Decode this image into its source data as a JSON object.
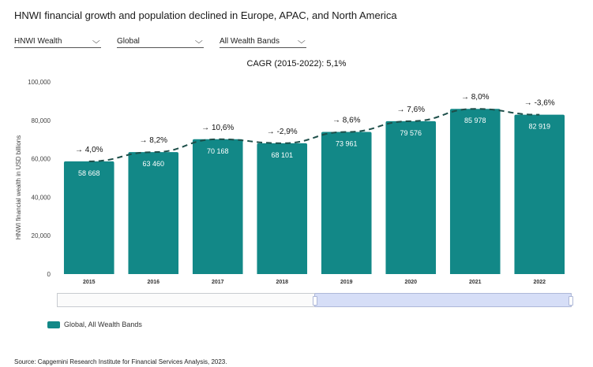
{
  "header": {
    "title": "HNWI financial growth and population declined in Europe, APAC, and North America"
  },
  "filters": [
    {
      "label": "HNWI Wealth"
    },
    {
      "label": "Global"
    },
    {
      "label": "All Wealth Bands"
    }
  ],
  "icons": {
    "dropdown": "chevron-down-icon"
  },
  "colors": {
    "bar": "#128887",
    "trend": "#1e4f4a"
  },
  "legend": {
    "label": "Global, All Wealth Bands"
  },
  "source": "Source: Capgemini Research Institute for Financial Services Analysis, 2023.",
  "chart_data": {
    "type": "bar",
    "title": "CAGR (2015-2022): 5,1%",
    "ylabel": "HNWI financial wealth in USD billions",
    "xlabel": "",
    "ylim": [
      0,
      100000
    ],
    "yticks": [
      "0",
      "20,000",
      "40,000",
      "60,000",
      "80,000",
      "100,000"
    ],
    "ytick_values": [
      0,
      20000,
      40000,
      60000,
      80000,
      100000
    ],
    "categories": [
      "2015",
      "2016",
      "2017",
      "2018",
      "2019",
      "2020",
      "2021",
      "2022"
    ],
    "series": [
      {
        "name": "Global, All Wealth Bands",
        "values": [
          58668,
          63460,
          70168,
          68101,
          73961,
          79576,
          85978,
          82919
        ],
        "value_labels": [
          "58 668",
          "63 460",
          "70 168",
          "68 101",
          "73 961",
          "79 576",
          "85 978",
          "82 919"
        ]
      }
    ],
    "growth_labels": [
      "→ 4,0%",
      "→ 8,2%",
      "→ 10,6%",
      "→ -2,9%",
      "→ 8,6%",
      "→ 7,6%",
      "→ 8,0%",
      "→ -3,6%"
    ],
    "grid": false,
    "legend_position": "bottom-left"
  }
}
